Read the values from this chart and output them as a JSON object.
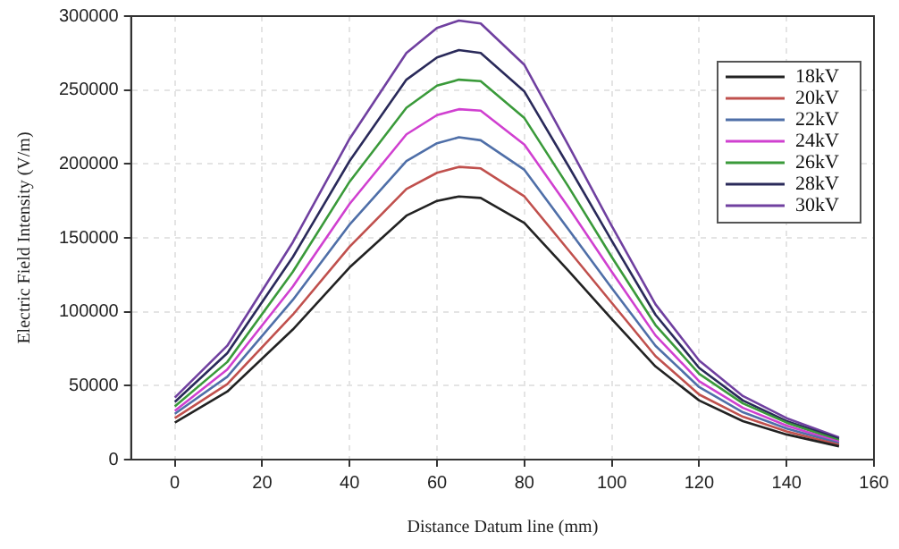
{
  "chart_data": {
    "type": "line",
    "xlabel": "Distance Datum line (mm)",
    "ylabel": "Electric Field Intensity (V/m)",
    "x": [
      0,
      12,
      27,
      40,
      53,
      60,
      65,
      70,
      80,
      90,
      100,
      110,
      120,
      130,
      140,
      152
    ],
    "series": [
      {
        "name": "18kV",
        "color": "#222222",
        "values": [
          25000,
          46000,
          88000,
          130000,
          165000,
          175000,
          178000,
          177000,
          160000,
          128000,
          95000,
          63000,
          40000,
          26000,
          17000,
          9000
        ]
      },
      {
        "name": "20kV",
        "color": "#c0504d",
        "values": [
          28000,
          51000,
          98000,
          144000,
          183000,
          194000,
          198000,
          197000,
          178000,
          142000,
          106000,
          70000,
          44000,
          29000,
          19000,
          10000
        ]
      },
      {
        "name": "22kV",
        "color": "#4f6fa8",
        "values": [
          31000,
          56000,
          108000,
          159000,
          202000,
          214000,
          218000,
          216000,
          196000,
          156000,
          116000,
          77000,
          49000,
          32000,
          21000,
          11000
        ]
      },
      {
        "name": "24kV",
        "color": "#d040d0",
        "values": [
          33000,
          61000,
          117000,
          173000,
          220000,
          233000,
          237000,
          236000,
          213000,
          171000,
          127000,
          84000,
          53000,
          35000,
          23000,
          12000
        ]
      },
      {
        "name": "26kV",
        "color": "#3a9a3a",
        "values": [
          36000,
          66000,
          127000,
          188000,
          238000,
          253000,
          257000,
          256000,
          231000,
          185000,
          137000,
          91000,
          58000,
          38000,
          25000,
          13000
        ]
      },
      {
        "name": "28kV",
        "color": "#2a2a5a",
        "values": [
          39000,
          72000,
          137000,
          202000,
          257000,
          272000,
          277000,
          275000,
          249000,
          199000,
          148000,
          98000,
          62000,
          40000,
          26000,
          14000
        ]
      },
      {
        "name": "30kV",
        "color": "#7040a0",
        "values": [
          42000,
          77000,
          147000,
          217000,
          275000,
          292000,
          297000,
          295000,
          267000,
          213000,
          158000,
          105000,
          67000,
          43000,
          28000,
          15000
        ]
      }
    ],
    "xlim": [
      -10,
      160
    ],
    "xticks": [
      0,
      20,
      40,
      60,
      80,
      100,
      120,
      140,
      160
    ],
    "ylim": [
      0,
      300000
    ],
    "yticks": [
      0,
      50000,
      100000,
      150000,
      200000,
      250000,
      300000
    ],
    "grid": true,
    "legend": "top right",
    "marker": "none",
    "line_style": "solid"
  }
}
